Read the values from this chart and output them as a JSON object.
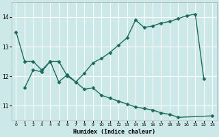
{
  "xlabel": "Humidex (Indice chaleur)",
  "background_color": "#cce8e8",
  "grid_color": "#ffffff",
  "line_color": "#1a6b5a",
  "marker": "D",
  "markersize": 2.5,
  "linewidth": 1.0,
  "series1_x": [
    0,
    1,
    2,
    3,
    4,
    5,
    6,
    7,
    8,
    9,
    10,
    11,
    12,
    13,
    14,
    15,
    16,
    17,
    18,
    19,
    20,
    21,
    22
  ],
  "series1_y": [
    13.5,
    12.5,
    12.5,
    12.2,
    12.5,
    12.5,
    12.0,
    11.8,
    12.1,
    12.45,
    12.6,
    12.8,
    13.05,
    13.3,
    13.9,
    13.65,
    13.7,
    13.8,
    13.85,
    13.95,
    14.05,
    14.1,
    11.9
  ],
  "series2_x": [
    1,
    2,
    3,
    4,
    5,
    6,
    7,
    8,
    9,
    10,
    11,
    12,
    13,
    14,
    15,
    16,
    17,
    18,
    19,
    23
  ],
  "series2_y": [
    11.6,
    12.2,
    12.15,
    12.5,
    11.8,
    12.05,
    11.8,
    11.55,
    11.6,
    11.35,
    11.25,
    11.15,
    11.05,
    10.95,
    10.9,
    10.85,
    10.75,
    10.7,
    10.6,
    10.65
  ],
  "ylim": [
    10.5,
    14.5
  ],
  "xlim": [
    -0.5,
    23.5
  ],
  "yticks": [
    11,
    12,
    13,
    14
  ],
  "xticks": [
    0,
    1,
    2,
    3,
    4,
    5,
    6,
    7,
    8,
    9,
    10,
    11,
    12,
    13,
    14,
    15,
    16,
    17,
    18,
    19,
    20,
    21,
    22,
    23
  ]
}
